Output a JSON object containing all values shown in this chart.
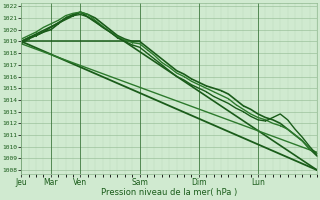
{
  "bg_color": "#d0ead0",
  "grid_color_light": "#b8d8b8",
  "grid_color_dark": "#90b890",
  "line_color_dark": "#1a5c1a",
  "line_color_mid": "#2d7a2d",
  "ylim": [
    1008,
    1022
  ],
  "yticks": [
    1008,
    1009,
    1010,
    1011,
    1012,
    1013,
    1014,
    1015,
    1016,
    1017,
    1018,
    1019,
    1020,
    1021,
    1022
  ],
  "xlabel": "Pression niveau de la mer( hPa )",
  "day_labels": [
    "Jeu",
    "Mar",
    "Ven",
    "Sam",
    "Dim",
    "Lun"
  ],
  "day_positions": [
    0,
    48,
    96,
    192,
    288,
    384
  ],
  "total_steps": 480,
  "series": [
    {
      "name": "straight_main",
      "x": [
        0,
        480
      ],
      "y": [
        1019.0,
        1008.0
      ],
      "lw": 1.3,
      "color": "#1a5c1a",
      "marker": null
    },
    {
      "name": "straight_flat",
      "x": [
        0,
        192
      ],
      "y": [
        1019.0,
        1019.0
      ],
      "lw": 1.1,
      "color": "#1a5c1a",
      "marker": null
    },
    {
      "name": "straight_peak",
      "x": [
        0,
        96,
        480
      ],
      "y": [
        1019.0,
        1021.5,
        1008.0
      ],
      "lw": 1.2,
      "color": "#1a5c1a",
      "marker": null
    },
    {
      "name": "straight_low",
      "x": [
        0,
        480
      ],
      "y": [
        1018.8,
        1009.5
      ],
      "lw": 1.0,
      "color": "#2d7a2d",
      "marker": null
    },
    {
      "name": "line_main",
      "x": [
        0,
        12,
        24,
        36,
        48,
        60,
        72,
        84,
        96,
        108,
        120,
        132,
        144,
        156,
        168,
        180,
        192,
        204,
        216,
        228,
        240,
        252,
        264,
        276,
        288,
        300,
        312,
        324,
        336,
        348,
        360,
        372,
        384,
        396,
        408,
        420,
        432,
        444,
        456,
        468,
        480
      ],
      "y": [
        1019.0,
        1019.3,
        1019.5,
        1019.8,
        1020.0,
        1020.5,
        1021.0,
        1021.3,
        1021.5,
        1021.3,
        1021.0,
        1020.5,
        1020.0,
        1019.5,
        1019.2,
        1019.0,
        1019.0,
        1018.5,
        1018.0,
        1017.5,
        1017.0,
        1016.5,
        1016.2,
        1015.8,
        1015.5,
        1015.2,
        1015.0,
        1014.8,
        1014.5,
        1014.0,
        1013.5,
        1013.2,
        1012.8,
        1012.5,
        1012.3,
        1012.0,
        1011.5,
        1011.0,
        1010.5,
        1009.8,
        1009.2
      ],
      "lw": 1.2,
      "color": "#1a5c1a",
      "marker": "."
    },
    {
      "name": "line_variant1",
      "x": [
        0,
        12,
        24,
        36,
        48,
        60,
        72,
        84,
        96,
        108,
        120,
        132,
        144,
        156,
        168,
        180,
        192,
        204,
        216,
        228,
        240,
        252,
        264,
        276,
        288,
        300,
        312,
        324,
        336,
        348,
        360,
        372,
        384,
        396,
        408,
        420,
        432,
        444,
        456,
        468,
        480
      ],
      "y": [
        1019.2,
        1019.5,
        1019.8,
        1020.2,
        1020.5,
        1020.8,
        1021.2,
        1021.4,
        1021.5,
        1021.3,
        1020.8,
        1020.3,
        1019.8,
        1019.4,
        1019.1,
        1018.9,
        1018.8,
        1018.3,
        1017.8,
        1017.2,
        1016.8,
        1016.3,
        1016.0,
        1015.6,
        1015.3,
        1015.0,
        1014.7,
        1014.4,
        1014.1,
        1013.6,
        1013.2,
        1012.8,
        1012.5,
        1012.3,
        1012.0,
        1011.8,
        1011.5,
        1011.0,
        1010.5,
        1009.8,
        1009.5
      ],
      "lw": 1.0,
      "color": "#2d7a2d",
      "marker": "."
    },
    {
      "name": "line_variant2",
      "x": [
        0,
        12,
        24,
        36,
        48,
        60,
        72,
        84,
        96,
        108,
        120,
        132,
        144,
        156,
        168,
        180,
        192,
        204,
        216,
        228,
        240,
        252,
        264,
        276,
        288,
        300,
        312,
        324,
        336,
        348,
        360,
        372,
        384,
        396,
        408,
        420,
        432,
        444,
        456,
        468,
        480
      ],
      "y": [
        1018.8,
        1019.2,
        1019.5,
        1019.8,
        1020.2,
        1020.6,
        1021.0,
        1021.2,
        1021.3,
        1021.1,
        1020.7,
        1020.2,
        1019.8,
        1019.3,
        1019.0,
        1018.7,
        1018.5,
        1018.0,
        1017.5,
        1017.0,
        1016.5,
        1016.0,
        1015.7,
        1015.3,
        1015.0,
        1014.7,
        1014.3,
        1014.0,
        1013.7,
        1013.3,
        1013.0,
        1012.6,
        1012.3,
        1012.2,
        1012.5,
        1012.8,
        1012.3,
        1011.5,
        1010.8,
        1010.0,
        1009.3
      ],
      "lw": 1.0,
      "color": "#1a5c1a",
      "marker": "."
    }
  ]
}
